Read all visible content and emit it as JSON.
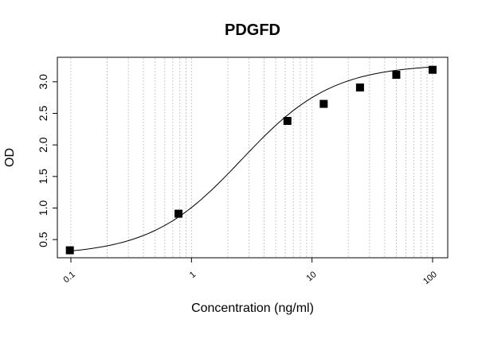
{
  "chart_data": {
    "type": "scatter",
    "title": "PDGFD",
    "xlabel": "Concentration (ng/ml)",
    "ylabel": "OD",
    "x_scale": "log",
    "xlim": [
      0.1,
      100
    ],
    "ylim": [
      0.3,
      3.3
    ],
    "grid": "vertical-dotted",
    "x_ticks": [
      0.1,
      1,
      10,
      100
    ],
    "x_tick_labels": [
      "0.1",
      "1",
      "10",
      "100"
    ],
    "y_ticks": [
      0.5,
      1.0,
      1.5,
      2.0,
      2.5,
      3.0
    ],
    "y_tick_labels": [
      "0.5",
      "1.0",
      "1.5",
      "2.0",
      "2.5",
      "3.0"
    ],
    "series": [
      {
        "x": [
          0.098,
          0.781,
          6.25,
          12.5,
          25,
          50,
          100
        ],
        "y": [
          0.33,
          0.91,
          2.38,
          2.65,
          2.91,
          3.11,
          3.19
        ],
        "marker": "square",
        "color": "#000000"
      }
    ],
    "fit": {
      "type": "4PL",
      "bottom": 0.25,
      "top": 3.28,
      "ec50": 2.6,
      "hill": 1.15,
      "color": "#000000"
    }
  }
}
